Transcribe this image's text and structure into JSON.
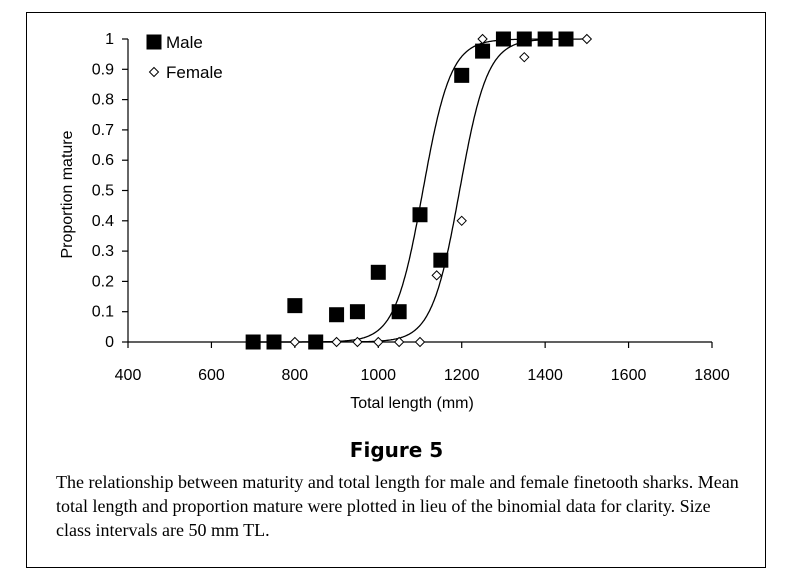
{
  "figure": {
    "title": "Figure 5",
    "caption": "The relationship between maturity and total length for male and female finetooth sharks. Mean total length and proportion mature were plotted in lieu of the binomial data for clarity. Size class intervals are 50 mm TL."
  },
  "chart_data": {
    "type": "scatter",
    "xlabel": "Total length (mm)",
    "ylabel": "Proportion mature",
    "xlim": [
      400,
      1800
    ],
    "ylim": [
      0,
      1
    ],
    "xticks": [
      400,
      600,
      800,
      1000,
      1200,
      1400,
      1600,
      1800
    ],
    "yticks": [
      0,
      0.1,
      0.2,
      0.3,
      0.4,
      0.5,
      0.6,
      0.7,
      0.8,
      0.9,
      1
    ],
    "ytick_labels": [
      "0",
      "0.1",
      "0.2",
      "0.3",
      "0.4",
      "0.5",
      "0.6",
      "0.7",
      "0.8",
      "0.9",
      "1"
    ],
    "legend_position": "top-left",
    "grid": false,
    "series": [
      {
        "name": "Male",
        "marker": "filled-square",
        "color": "#000000",
        "x": [
          700,
          750,
          800,
          850,
          900,
          950,
          1000,
          1050,
          1100,
          1150,
          1200,
          1250,
          1300,
          1350,
          1400,
          1450
        ],
        "y": [
          0,
          0,
          0.12,
          0,
          0.09,
          0.1,
          0.23,
          0.1,
          0.42,
          0.27,
          0.88,
          0.96,
          1,
          1,
          1,
          1
        ],
        "fit_curve": {
          "midpoint": 1107,
          "slope": 0.03
        }
      },
      {
        "name": "Female",
        "marker": "open-diamond",
        "color": "#000000",
        "x": [
          700,
          750,
          800,
          850,
          900,
          950,
          1000,
          1050,
          1100,
          1140,
          1200,
          1250,
          1300,
          1350,
          1400,
          1450,
          1500
        ],
        "y": [
          0,
          0,
          0,
          0,
          0,
          0,
          0,
          0,
          0,
          0.22,
          0.4,
          1,
          1,
          0.94,
          1,
          1,
          1
        ],
        "fit_curve": {
          "midpoint": 1195,
          "slope": 0.03
        }
      }
    ]
  }
}
